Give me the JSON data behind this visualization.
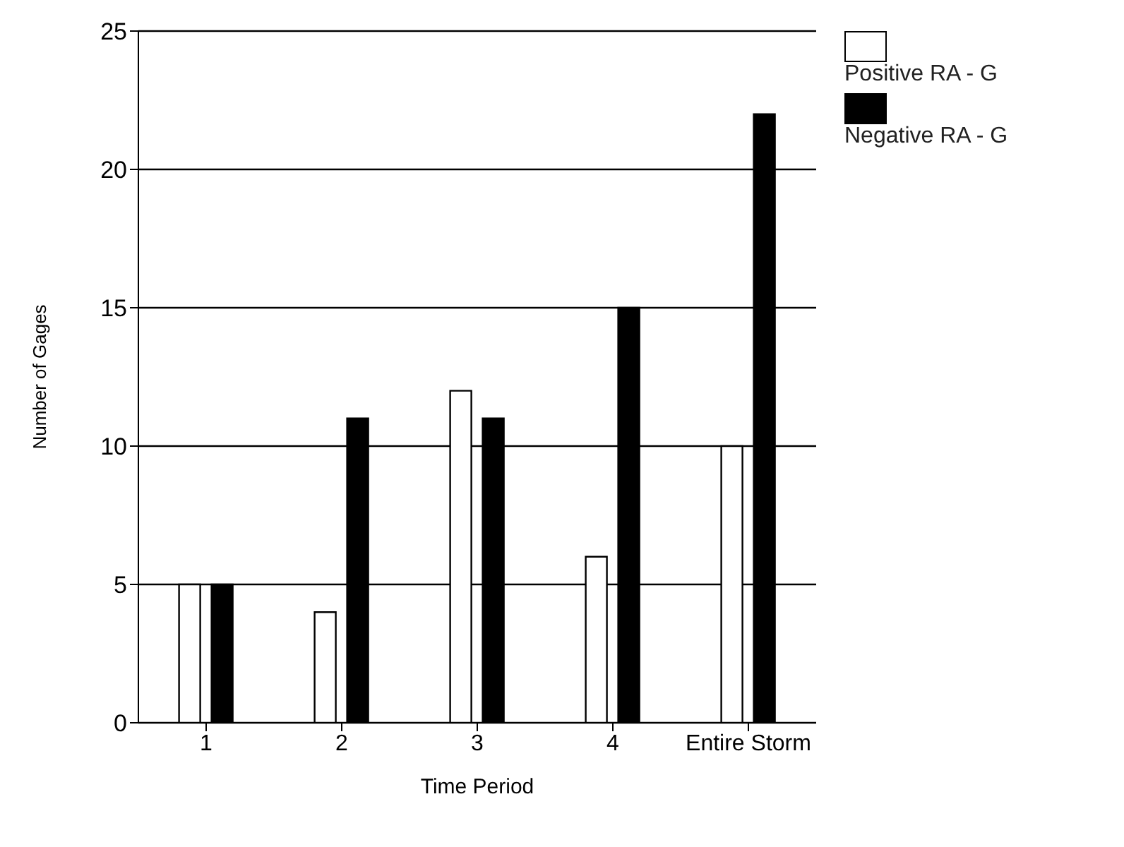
{
  "chart_data": {
    "type": "bar",
    "xlabel": "Time Period",
    "ylabel": "Number of Gages",
    "categories": [
      "1",
      "2",
      "3",
      "4",
      "Entire Storm"
    ],
    "series": [
      {
        "name": "Positive RA - G",
        "color": "#ffffff",
        "values": [
          5,
          4,
          12,
          6,
          10
        ]
      },
      {
        "name": "Negative RA - G",
        "color": "#000000",
        "values": [
          5,
          11,
          11,
          15,
          22
        ]
      }
    ],
    "ylim": [
      0,
      25
    ],
    "yticks": [
      0,
      5,
      10,
      15,
      20,
      25
    ],
    "grid": "y",
    "legend": "top right"
  }
}
